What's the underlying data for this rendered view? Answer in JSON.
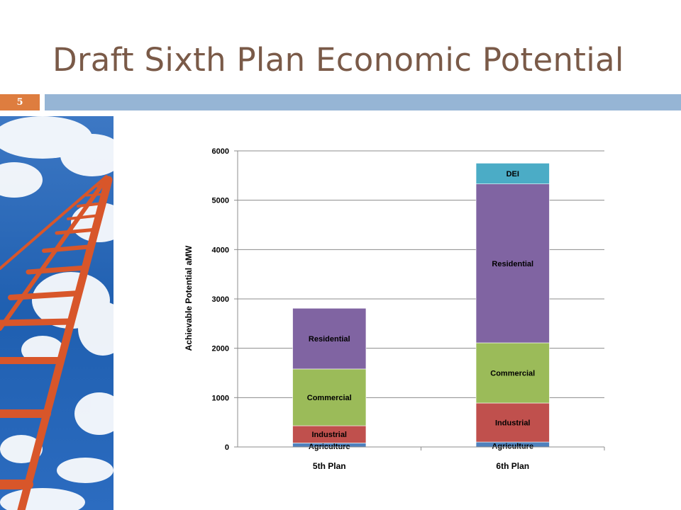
{
  "slide": {
    "title": "Draft Sixth Plan Economic Potential",
    "number": "5",
    "colors": {
      "title": "#7a5a48",
      "number_box": "#de7d3f",
      "bar": "#96b5d5"
    }
  },
  "image": {
    "semantic": "ladder-to-sky-photo"
  },
  "chart_data": {
    "type": "bar",
    "stacked": true,
    "title": "",
    "xlabel": "",
    "ylabel": "Achievable Potential  aMW",
    "ylim": [
      0,
      6000
    ],
    "yticks": [
      0,
      1000,
      2000,
      3000,
      4000,
      5000,
      6000
    ],
    "grid": true,
    "legend": "none (segments labeled inline)",
    "categories": [
      "5th Plan",
      "6th Plan"
    ],
    "series": [
      {
        "name": "Agriculture",
        "color": "#4f81bd",
        "values": [
          80,
          100
        ]
      },
      {
        "name": "Industrial",
        "color": "#c0504d",
        "values": [
          350,
          790
        ]
      },
      {
        "name": "Commercial",
        "color": "#9bbb59",
        "values": [
          1150,
          1220
        ]
      },
      {
        "name": "Residential",
        "color": "#8064a2",
        "values": [
          1230,
          3220
        ]
      },
      {
        "name": "DEI",
        "color": "#4bacc6",
        "values": [
          null,
          420
        ]
      }
    ]
  }
}
